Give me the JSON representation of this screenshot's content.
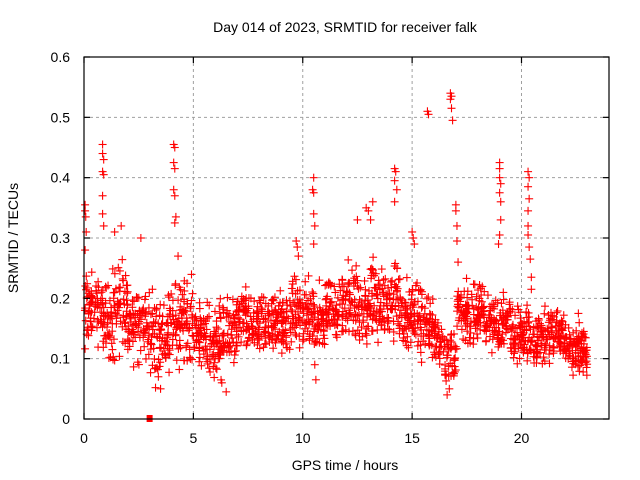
{
  "chart_data": {
    "type": "scatter",
    "title": "Day 014 of 2023, SRMTID for receiver falk",
    "xlabel": "GPS time / hours",
    "ylabel": "SRMTID / TECUs",
    "xlim": [
      0,
      24
    ],
    "ylim": [
      0,
      0.6
    ],
    "xticks": [
      0,
      5,
      10,
      15,
      20
    ],
    "xtick_labels": [
      "0",
      "5",
      "10",
      "15",
      "20"
    ],
    "yticks": [
      0,
      0.1,
      0.2,
      0.3,
      0.4,
      0.5,
      0.6
    ],
    "ytick_labels": [
      "0",
      "0.1",
      "0.2",
      "0.3",
      "0.4",
      "0.5",
      "0.6"
    ],
    "grid": true,
    "legend": "none",
    "marker": "plus",
    "color": "#ff0000",
    "series": [
      {
        "name": "SRMTID",
        "note": "representative sample of the dense scatter; band envelope per hour plus visible spikes",
        "band": [
          {
            "x": 0.0,
            "lo": 0.11,
            "hi": 0.28,
            "mid": 0.17
          },
          {
            "x": 0.5,
            "lo": 0.1,
            "hi": 0.26,
            "mid": 0.17
          },
          {
            "x": 1.0,
            "lo": 0.08,
            "hi": 0.3,
            "mid": 0.16
          },
          {
            "x": 1.5,
            "lo": 0.09,
            "hi": 0.29,
            "mid": 0.18
          },
          {
            "x": 2.0,
            "lo": 0.09,
            "hi": 0.27,
            "mid": 0.15
          },
          {
            "x": 2.5,
            "lo": 0.08,
            "hi": 0.26,
            "mid": 0.14
          },
          {
            "x": 3.0,
            "lo": 0.05,
            "hi": 0.25,
            "mid": 0.13
          },
          {
            "x": 3.5,
            "lo": 0.06,
            "hi": 0.24,
            "mid": 0.15
          },
          {
            "x": 4.0,
            "lo": 0.07,
            "hi": 0.27,
            "mid": 0.15
          },
          {
            "x": 4.5,
            "lo": 0.08,
            "hi": 0.27,
            "mid": 0.16
          },
          {
            "x": 5.0,
            "lo": 0.08,
            "hi": 0.22,
            "mid": 0.13
          },
          {
            "x": 5.5,
            "lo": 0.06,
            "hi": 0.23,
            "mid": 0.12
          },
          {
            "x": 6.0,
            "lo": 0.05,
            "hi": 0.22,
            "mid": 0.12
          },
          {
            "x": 6.5,
            "lo": 0.07,
            "hi": 0.24,
            "mid": 0.14
          },
          {
            "x": 7.0,
            "lo": 0.09,
            "hi": 0.24,
            "mid": 0.16
          },
          {
            "x": 7.5,
            "lo": 0.09,
            "hi": 0.22,
            "mid": 0.15
          },
          {
            "x": 8.0,
            "lo": 0.08,
            "hi": 0.23,
            "mid": 0.15
          },
          {
            "x": 8.5,
            "lo": 0.09,
            "hi": 0.24,
            "mid": 0.16
          },
          {
            "x": 9.0,
            "lo": 0.09,
            "hi": 0.24,
            "mid": 0.15
          },
          {
            "x": 9.5,
            "lo": 0.1,
            "hi": 0.27,
            "mid": 0.17
          },
          {
            "x": 10.0,
            "lo": 0.1,
            "hi": 0.25,
            "mid": 0.17
          },
          {
            "x": 10.5,
            "lo": 0.07,
            "hi": 0.25,
            "mid": 0.15
          },
          {
            "x": 11.0,
            "lo": 0.12,
            "hi": 0.26,
            "mid": 0.19
          },
          {
            "x": 11.5,
            "lo": 0.12,
            "hi": 0.25,
            "mid": 0.18
          },
          {
            "x": 12.0,
            "lo": 0.11,
            "hi": 0.3,
            "mid": 0.19
          },
          {
            "x": 12.5,
            "lo": 0.1,
            "hi": 0.3,
            "mid": 0.18
          },
          {
            "x": 13.0,
            "lo": 0.1,
            "hi": 0.31,
            "mid": 0.2
          },
          {
            "x": 13.5,
            "lo": 0.1,
            "hi": 0.28,
            "mid": 0.18
          },
          {
            "x": 14.0,
            "lo": 0.1,
            "hi": 0.3,
            "mid": 0.19
          },
          {
            "x": 14.5,
            "lo": 0.09,
            "hi": 0.27,
            "mid": 0.16
          },
          {
            "x": 15.0,
            "lo": 0.09,
            "hi": 0.29,
            "mid": 0.16
          },
          {
            "x": 15.5,
            "lo": 0.1,
            "hi": 0.22,
            "mid": 0.15
          },
          {
            "x": 16.0,
            "lo": 0.07,
            "hi": 0.2,
            "mid": 0.13
          },
          {
            "x": 16.5,
            "lo": 0.04,
            "hi": 0.18,
            "mid": 0.1
          },
          {
            "x": 17.0,
            "lo": 0.1,
            "hi": 0.25,
            "mid": 0.17
          },
          {
            "x": 17.5,
            "lo": 0.11,
            "hi": 0.24,
            "mid": 0.17
          },
          {
            "x": 18.0,
            "lo": 0.1,
            "hi": 0.24,
            "mid": 0.17
          },
          {
            "x": 18.5,
            "lo": 0.09,
            "hi": 0.23,
            "mid": 0.16
          },
          {
            "x": 19.0,
            "lo": 0.1,
            "hi": 0.23,
            "mid": 0.16
          },
          {
            "x": 19.5,
            "lo": 0.09,
            "hi": 0.21,
            "mid": 0.14
          },
          {
            "x": 20.0,
            "lo": 0.08,
            "hi": 0.22,
            "mid": 0.14
          },
          {
            "x": 20.5,
            "lo": 0.06,
            "hi": 0.2,
            "mid": 0.13
          },
          {
            "x": 21.0,
            "lo": 0.08,
            "hi": 0.21,
            "mid": 0.14
          },
          {
            "x": 21.5,
            "lo": 0.08,
            "hi": 0.2,
            "mid": 0.14
          },
          {
            "x": 22.0,
            "lo": 0.06,
            "hi": 0.17,
            "mid": 0.11
          },
          {
            "x": 22.5,
            "lo": 0.06,
            "hi": 0.17,
            "mid": 0.11
          },
          {
            "x": 22.9,
            "lo": 0.07,
            "hi": 0.15,
            "mid": 0.1
          }
        ],
        "spikes": [
          {
            "x": 0.05,
            "y": 0.355
          },
          {
            "x": 0.05,
            "y": 0.345
          },
          {
            "x": 0.08,
            "y": 0.335
          },
          {
            "x": 0.1,
            "y": 0.31
          },
          {
            "x": 0.05,
            "y": 0.28
          },
          {
            "x": 0.85,
            "y": 0.455
          },
          {
            "x": 0.85,
            "y": 0.44
          },
          {
            "x": 0.9,
            "y": 0.43
          },
          {
            "x": 0.85,
            "y": 0.41
          },
          {
            "x": 0.9,
            "y": 0.405
          },
          {
            "x": 0.85,
            "y": 0.37
          },
          {
            "x": 0.85,
            "y": 0.34
          },
          {
            "x": 0.9,
            "y": 0.32
          },
          {
            "x": 1.4,
            "y": 0.31
          },
          {
            "x": 1.7,
            "y": 0.32
          },
          {
            "x": 2.6,
            "y": 0.3
          },
          {
            "x": 4.1,
            "y": 0.455
          },
          {
            "x": 4.15,
            "y": 0.45
          },
          {
            "x": 4.1,
            "y": 0.425
          },
          {
            "x": 4.15,
            "y": 0.415
          },
          {
            "x": 4.1,
            "y": 0.38
          },
          {
            "x": 4.15,
            "y": 0.37
          },
          {
            "x": 4.2,
            "y": 0.335
          },
          {
            "x": 4.15,
            "y": 0.325
          },
          {
            "x": 4.3,
            "y": 0.27
          },
          {
            "x": 3.5,
            "y": 0.05
          },
          {
            "x": 3.4,
            "y": 0.07
          },
          {
            "x": 6.5,
            "y": 0.045
          },
          {
            "x": 6.3,
            "y": 0.06
          },
          {
            "x": 9.7,
            "y": 0.295
          },
          {
            "x": 9.75,
            "y": 0.285
          },
          {
            "x": 9.8,
            "y": 0.27
          },
          {
            "x": 10.5,
            "y": 0.4
          },
          {
            "x": 10.45,
            "y": 0.38
          },
          {
            "x": 10.5,
            "y": 0.375
          },
          {
            "x": 10.5,
            "y": 0.34
          },
          {
            "x": 10.55,
            "y": 0.32
          },
          {
            "x": 10.5,
            "y": 0.29
          },
          {
            "x": 10.6,
            "y": 0.065
          },
          {
            "x": 10.55,
            "y": 0.09
          },
          {
            "x": 12.5,
            "y": 0.33
          },
          {
            "x": 12.9,
            "y": 0.35
          },
          {
            "x": 13.0,
            "y": 0.345
          },
          {
            "x": 13.1,
            "y": 0.33
          },
          {
            "x": 13.2,
            "y": 0.36
          },
          {
            "x": 14.2,
            "y": 0.415
          },
          {
            "x": 14.25,
            "y": 0.41
          },
          {
            "x": 14.2,
            "y": 0.395
          },
          {
            "x": 14.3,
            "y": 0.38
          },
          {
            "x": 14.2,
            "y": 0.36
          },
          {
            "x": 15.0,
            "y": 0.31
          },
          {
            "x": 15.05,
            "y": 0.3
          },
          {
            "x": 15.1,
            "y": 0.29
          },
          {
            "x": 15.7,
            "y": 0.51
          },
          {
            "x": 15.75,
            "y": 0.505
          },
          {
            "x": 16.75,
            "y": 0.54
          },
          {
            "x": 16.8,
            "y": 0.535
          },
          {
            "x": 16.75,
            "y": 0.53
          },
          {
            "x": 16.8,
            "y": 0.515
          },
          {
            "x": 16.85,
            "y": 0.495
          },
          {
            "x": 16.6,
            "y": 0.04
          },
          {
            "x": 16.7,
            "y": 0.05
          },
          {
            "x": 17.0,
            "y": 0.355
          },
          {
            "x": 17.0,
            "y": 0.345
          },
          {
            "x": 17.05,
            "y": 0.32
          },
          {
            "x": 17.05,
            "y": 0.295
          },
          {
            "x": 17.1,
            "y": 0.26
          },
          {
            "x": 19.0,
            "y": 0.425
          },
          {
            "x": 19.0,
            "y": 0.415
          },
          {
            "x": 19.0,
            "y": 0.4
          },
          {
            "x": 19.05,
            "y": 0.39
          },
          {
            "x": 19.0,
            "y": 0.375
          },
          {
            "x": 19.05,
            "y": 0.36
          },
          {
            "x": 19.05,
            "y": 0.33
          },
          {
            "x": 19.0,
            "y": 0.305
          },
          {
            "x": 18.95,
            "y": 0.29
          },
          {
            "x": 20.3,
            "y": 0.41
          },
          {
            "x": 20.35,
            "y": 0.4
          },
          {
            "x": 20.3,
            "y": 0.385
          },
          {
            "x": 20.35,
            "y": 0.365
          },
          {
            "x": 20.3,
            "y": 0.345
          },
          {
            "x": 20.3,
            "y": 0.32
          },
          {
            "x": 20.3,
            "y": 0.305
          },
          {
            "x": 20.35,
            "y": 0.285
          },
          {
            "x": 20.4,
            "y": 0.265
          },
          {
            "x": 20.45,
            "y": 0.235
          },
          {
            "x": 20.45,
            "y": 0.215
          },
          {
            "x": 22.6,
            "y": 0.175
          }
        ]
      },
      {
        "name": "marker-square",
        "marker": "square",
        "points": [
          {
            "x": 3.0,
            "y": 0.0
          }
        ]
      }
    ]
  }
}
